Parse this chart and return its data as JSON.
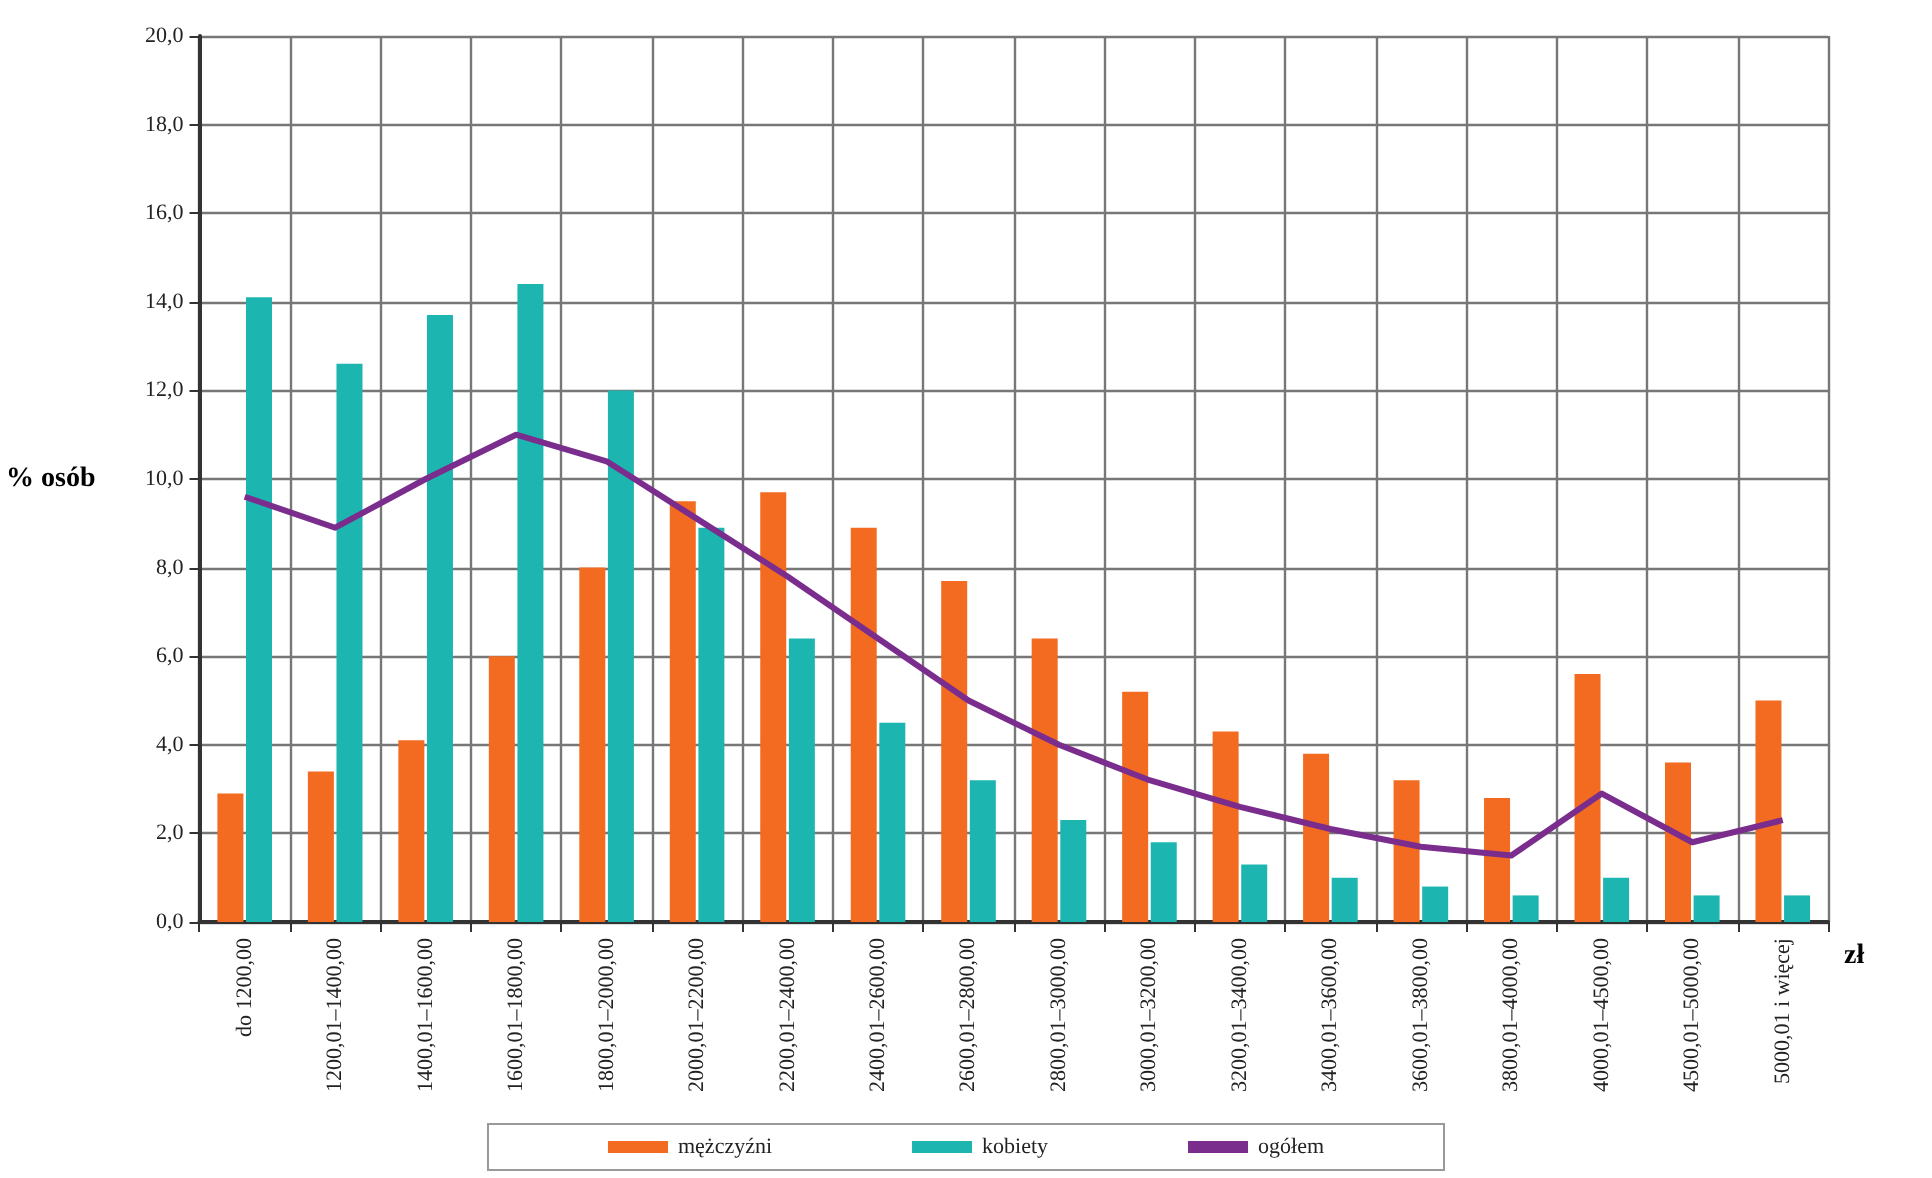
{
  "chart_data": {
    "type": "bar",
    "xlabel": "zł",
    "ylabel": "% osób",
    "categories": [
      "do 1200,00",
      "1200,01–1400,00",
      "1400,01–1600,00",
      "1600,01–1800,00",
      "1800,01–2000,00",
      "2000,01–2200,00",
      "2200,01–2400,00",
      "2400,01–2600,00",
      "2600,01–2800,00",
      "2800,01–3000,00",
      "3000,01–3200,00",
      "3200,01–3400,00",
      "3400,01–3600,00",
      "3600,01–3800,00",
      "3800,01–4000,00",
      "4000,01–4500,00",
      "4500,01–5000,00",
      "5000,01 i więcej"
    ],
    "series": [
      {
        "name": "mężczyźni",
        "color": "#f26b21",
        "values": [
          2.9,
          3.4,
          4.1,
          6.0,
          8.0,
          9.5,
          9.7,
          8.9,
          7.7,
          6.4,
          5.2,
          4.3,
          3.8,
          3.2,
          2.8,
          5.6,
          3.6,
          5.0
        ]
      },
      {
        "name": "kobiety",
        "color": "#1db5b0",
        "values": [
          14.1,
          12.6,
          13.7,
          14.4,
          12.0,
          8.9,
          6.4,
          4.5,
          3.2,
          2.3,
          1.8,
          1.3,
          1.0,
          0.8,
          0.6,
          1.0,
          0.6,
          0.6
        ]
      },
      {
        "name": "ogółem",
        "type": "line",
        "color": "#7b2d8e",
        "values": [
          9.6,
          8.9,
          10.0,
          11.0,
          10.4,
          9.1,
          7.8,
          6.4,
          5.0,
          4.0,
          3.2,
          2.6,
          2.1,
          1.7,
          1.5,
          2.9,
          1.8,
          2.3
        ]
      }
    ],
    "ylim": [
      0,
      20
    ],
    "yticks": [
      {
        "value": 0,
        "label": "0,0"
      },
      {
        "value": 2,
        "label": "2,0"
      },
      {
        "value": 4,
        "label": "4,0"
      },
      {
        "value": 6,
        "label": "6,0"
      },
      {
        "value": 8,
        "label": "8,0"
      },
      {
        "value": 10,
        "label": "10,0"
      },
      {
        "value": 12,
        "label": "12,0"
      },
      {
        "value": 14,
        "label": "14,0"
      },
      {
        "value": 16,
        "label": "16,0"
      },
      {
        "value": 18,
        "label": "18,0"
      },
      {
        "value": 20,
        "label": "20,0"
      }
    ],
    "grid": true,
    "legend": "bottom",
    "marker": "none",
    "line_style": "solid"
  }
}
